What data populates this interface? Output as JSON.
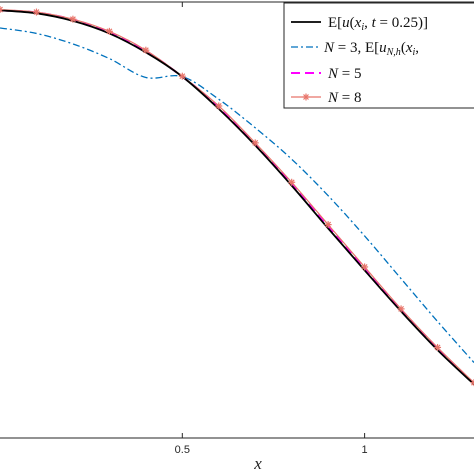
{
  "chart_data": {
    "type": "line",
    "title": "",
    "xlabel": "x",
    "ylabel": "",
    "xlim": [
      0.0,
      1.3
    ],
    "ylim": [
      -0.02,
      1.02
    ],
    "xticks": [
      0.5,
      1
    ],
    "xtick_labels": [
      "0.5",
      "1"
    ],
    "grid": false,
    "legend_position": "top-right",
    "series": [
      {
        "name": "E[u(x_i, t = 0.25)]",
        "color": "#000000",
        "style": "solid",
        "marker": "none",
        "x": [
          0.0,
          0.1,
          0.2,
          0.3,
          0.4,
          0.5,
          0.6,
          0.7,
          0.8,
          0.9,
          1.0,
          1.1,
          1.2,
          1.3
        ],
        "y": [
          1.0,
          0.993,
          0.975,
          0.945,
          0.9,
          0.842,
          0.765,
          0.678,
          0.582,
          0.48,
          0.38,
          0.282,
          0.19,
          0.108
        ]
      },
      {
        "name": "N = 3,   E[u_{N,h}(x_i,",
        "color": "#0072BD",
        "style": "dashdot",
        "marker": "none",
        "x": [
          0.0,
          0.1,
          0.2,
          0.3,
          0.4,
          0.5,
          0.6,
          0.7,
          0.8,
          0.9,
          1.0,
          1.1,
          1.2,
          1.3
        ],
        "y": [
          0.958,
          0.945,
          0.92,
          0.885,
          0.84,
          0.842,
          0.788,
          0.72,
          0.645,
          0.558,
          0.462,
          0.36,
          0.258,
          0.16
        ]
      },
      {
        "name": "N = 5",
        "color": "#FF00FF",
        "style": "dashed",
        "marker": "none",
        "x": [
          0.0,
          0.1,
          0.2,
          0.3,
          0.4,
          0.5,
          0.6,
          0.7,
          0.8,
          0.9,
          1.0,
          1.1,
          1.2,
          1.3
        ],
        "y": [
          1.0,
          0.995,
          0.978,
          0.948,
          0.903,
          0.842,
          0.77,
          0.682,
          0.587,
          0.486,
          0.385,
          0.286,
          0.194,
          0.11
        ]
      },
      {
        "name": "N = 8",
        "color": "#E8756B",
        "style": "solid",
        "marker": "star",
        "x": [
          0.0,
          0.1,
          0.2,
          0.3,
          0.4,
          0.5,
          0.6,
          0.7,
          0.8,
          0.9,
          1.0,
          1.1,
          1.2,
          1.3
        ],
        "y": [
          1.002,
          0.996,
          0.979,
          0.95,
          0.905,
          0.843,
          0.772,
          0.684,
          0.59,
          0.489,
          0.388,
          0.288,
          0.196,
          0.112
        ]
      }
    ],
    "legend": [
      {
        "type": "text",
        "label": "E[u(x_i, t = 0.25)]"
      },
      {
        "type": "text",
        "label": "N = 3,   E[u_{N,h}(x_i,"
      },
      {
        "type": "text",
        "label": "N = 5"
      },
      {
        "type": "text",
        "label": "N = 8"
      }
    ]
  }
}
